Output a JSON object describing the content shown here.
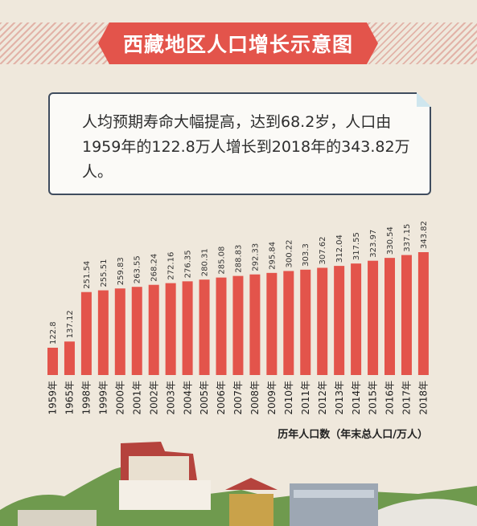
{
  "title": "西藏地区人口增长示意图",
  "note": "人均预期寿命大幅提高，达到68.2岁，人口由1959年的122.8万人增长到2018年的343.82万人。",
  "colors": {
    "bar": "#e3544b",
    "banner": "#e3544b",
    "background": "#efe8dc",
    "note_border": "#3f4c5e"
  },
  "chart_data": {
    "type": "bar",
    "categories": [
      "1959年",
      "1965年",
      "1998年",
      "1999年",
      "2000年",
      "2001年",
      "2002年",
      "2003年",
      "2004年",
      "2005年",
      "2006年",
      "2007年",
      "2008年",
      "2009年",
      "2010年",
      "2011年",
      "2012年",
      "2013年",
      "2014年",
      "2015年",
      "2016年",
      "2017年",
      "2018年"
    ],
    "values": [
      122.8,
      137.12,
      251.54,
      255.51,
      259.83,
      263.55,
      268.24,
      272.16,
      276.35,
      280.31,
      285.08,
      288.83,
      292.33,
      295.84,
      300.22,
      303.3,
      307.62,
      312.04,
      317.55,
      323.97,
      330.54,
      337.15,
      343.82
    ],
    "labels": [
      "122.8",
      "137.12",
      "251.54",
      "255.51",
      "259.83",
      "263.55",
      "268.24",
      "272.16",
      "276.35",
      "280.31",
      "285.08",
      "288.83",
      "292.33",
      "295.84",
      "300.22",
      "303.3",
      "307.62",
      "312.04",
      "317.55",
      "323.97",
      "330.54",
      "337.15",
      "343.82"
    ],
    "xlabel": "",
    "ylabel": "",
    "caption": "历年人口数（年末总人口/万人）",
    "ylim": [
      0,
      343.82
    ],
    "grid": false,
    "legend": "none"
  }
}
